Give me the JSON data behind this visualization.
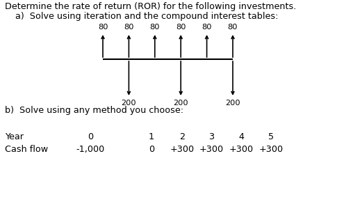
{
  "title_line1": "Determine the rate of return (ROR) for the following investments.",
  "title_line2": "a)  Solve using iteration and the compound interest tables:",
  "part_b_label": "b)  Solve using any method you choose:",
  "diagram": {
    "up_arrows": [
      {
        "x": 0,
        "label": "80"
      },
      {
        "x": 1,
        "label": "80"
      },
      {
        "x": 2,
        "label": "80"
      },
      {
        "x": 3,
        "label": "80"
      },
      {
        "x": 4,
        "label": "80"
      },
      {
        "x": 5,
        "label": "80"
      }
    ],
    "down_arrows": [
      {
        "x": 1,
        "label": "200"
      },
      {
        "x": 3,
        "label": "200"
      },
      {
        "x": 5,
        "label": "200"
      }
    ]
  },
  "table": {
    "row1_label": "Year",
    "row2_label": "Cash flow",
    "years": [
      "0",
      "1",
      "2",
      "3",
      "4",
      "5"
    ],
    "cashflows": [
      "-1,000",
      "0",
      "+300",
      "+300",
      "+300",
      "+300"
    ]
  },
  "bg_color": "#ffffff",
  "text_color": "#000000",
  "font_size_title": 9.2,
  "font_size_diagram": 8.2,
  "font_size_table": 9.2
}
